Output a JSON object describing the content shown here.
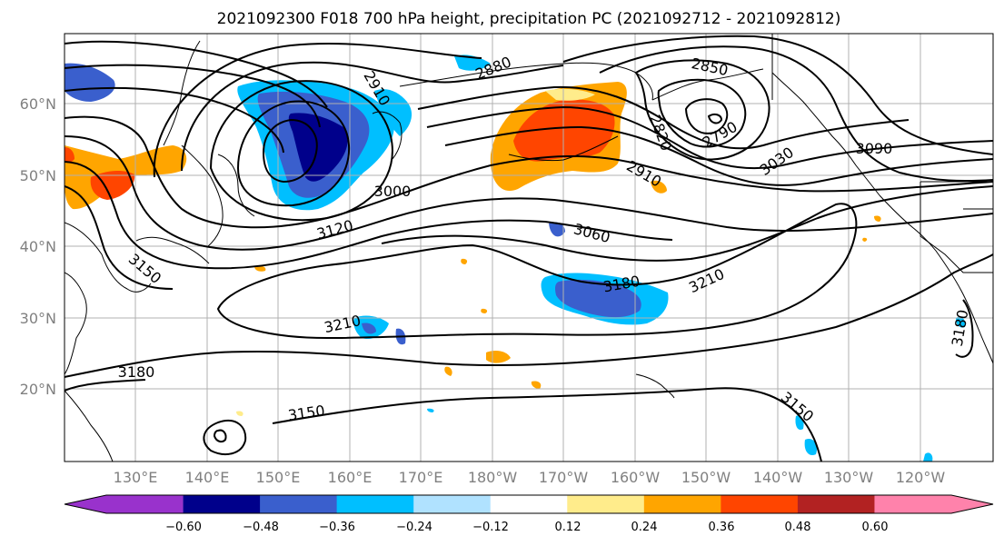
{
  "title": "2021092300 F018 700 hPa height, precipitation PC (2021092712 - 2021092812)",
  "lat_labels": [
    "60°N",
    "50°N",
    "40°N",
    "30°N",
    "20°N"
  ],
  "lon_labels": [
    "130°E",
    "140°E",
    "150°E",
    "160°E",
    "170°E",
    "180°W",
    "170°W",
    "160°W",
    "150°W",
    "140°W",
    "130°W",
    "120°W"
  ],
  "colorbar": {
    "ticks": [
      "−0.60",
      "−0.48",
      "−0.36",
      "−0.24",
      "−0.12",
      "0.12",
      "0.24",
      "0.36",
      "0.48",
      "0.60"
    ],
    "colors": [
      "#9932cc",
      "#00008b",
      "#3a5fcd",
      "#00bfff",
      "#b0e2ff",
      "#ffffff",
      "#ffec8b",
      "#ffa500",
      "#ff4500",
      "#b22222",
      "#ff82ab"
    ]
  },
  "contour_labels": [
    "2880",
    "2910",
    "2850",
    "2820",
    "2790",
    "3090",
    "3030",
    "2910",
    "3000",
    "3060",
    "3120",
    "3150",
    "3180",
    "3210",
    "3210",
    "3180",
    "3150",
    "3150",
    "3180"
  ]
}
